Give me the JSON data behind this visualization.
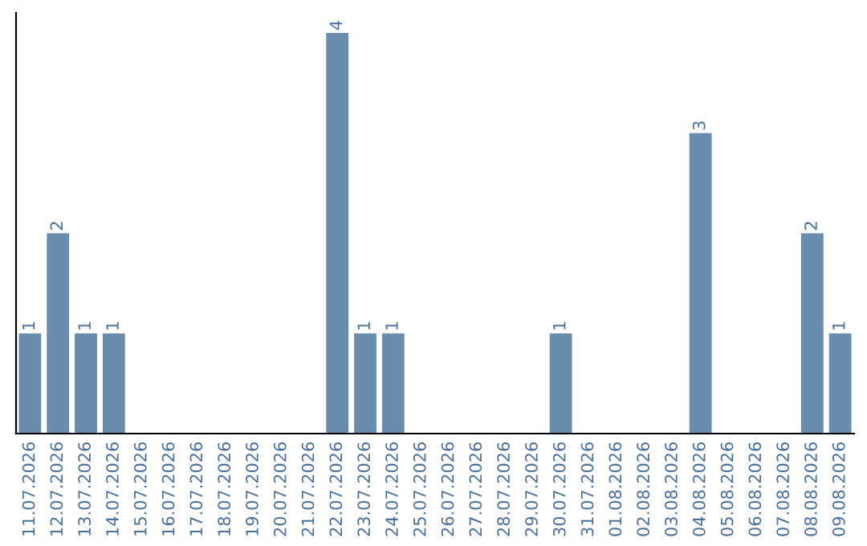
{
  "chart_data": {
    "type": "bar",
    "categories": [
      "11.07.2026",
      "12.07.2026",
      "13.07.2026",
      "14.07.2026",
      "15.07.2026",
      "16.07.2026",
      "17.07.2026",
      "18.07.2026",
      "19.07.2026",
      "20.07.2026",
      "21.07.2026",
      "22.07.2026",
      "23.07.2026",
      "24.07.2026",
      "25.07.2026",
      "26.07.2026",
      "27.07.2026",
      "28.07.2026",
      "29.07.2026",
      "30.07.2026",
      "31.07.2026",
      "01.08.2026",
      "02.08.2026",
      "03.08.2026",
      "04.08.2026",
      "05.08.2026",
      "06.08.2026",
      "07.08.2026",
      "08.08.2026",
      "09.08.2026"
    ],
    "values": [
      1,
      2,
      1,
      1,
      0,
      0,
      0,
      0,
      0,
      0,
      0,
      4,
      1,
      1,
      0,
      0,
      0,
      0,
      0,
      1,
      0,
      0,
      0,
      0,
      3,
      0,
      0,
      0,
      2,
      1
    ],
    "value_labels": [
      "1",
      "2",
      "1",
      "1",
      null,
      null,
      null,
      null,
      null,
      null,
      null,
      "4",
      "1",
      "1",
      null,
      null,
      null,
      null,
      null,
      "1",
      null,
      null,
      null,
      null,
      "3",
      null,
      null,
      null,
      "2",
      "1"
    ],
    "color": "#6a8caf",
    "tick_labels": "x",
    "grid": false,
    "legend": false
  }
}
